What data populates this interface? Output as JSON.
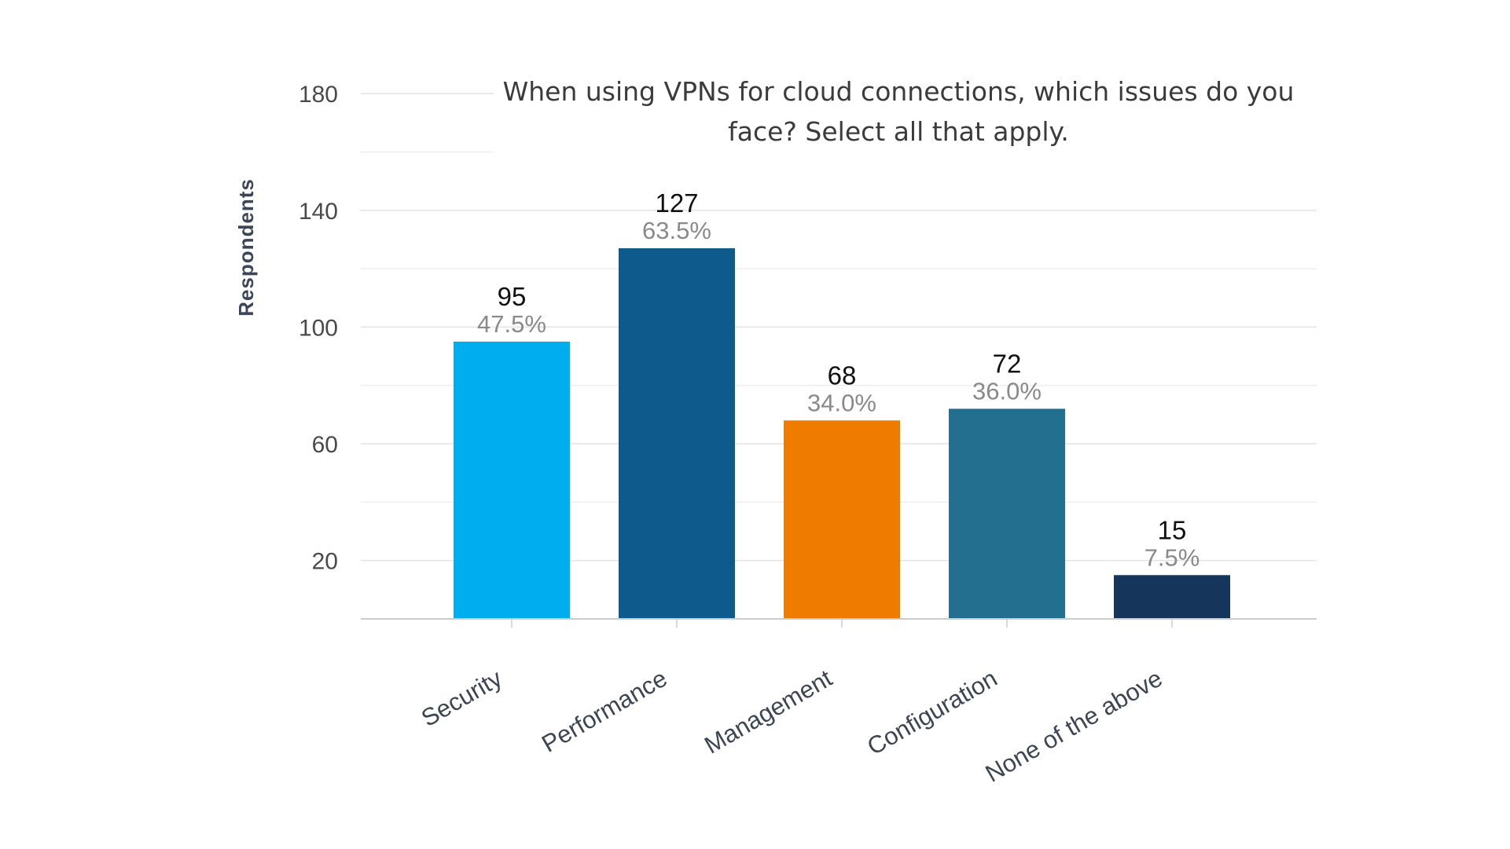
{
  "chart_data": {
    "type": "bar",
    "title_lines": [
      "When using VPNs for cloud connections, which issues do you",
      "face? Select all that apply."
    ],
    "xlabel": "",
    "ylabel": "Respondents",
    "ylim": [
      0,
      190
    ],
    "yticks": [
      20,
      60,
      100,
      140,
      180
    ],
    "ytick_labels": [
      "20",
      "60",
      "100",
      "140",
      "180"
    ],
    "minor_gridlines": [
      0,
      40,
      80,
      120,
      160
    ],
    "grid": true,
    "categories": [
      "Security",
      "Performance",
      "Management",
      "Configuration",
      "None of the above"
    ],
    "values": [
      95,
      127,
      68,
      72,
      15
    ],
    "value_labels": [
      "95",
      "127",
      "68",
      "72",
      "15"
    ],
    "percent_labels": [
      "47.5%",
      "63.5%",
      "34.0%",
      "36.0%",
      "7.5%"
    ],
    "colors": [
      "#00aeef",
      "#0f5a8c",
      "#ef7b00",
      "#236f8f",
      "#15355b"
    ],
    "legend": "none"
  }
}
